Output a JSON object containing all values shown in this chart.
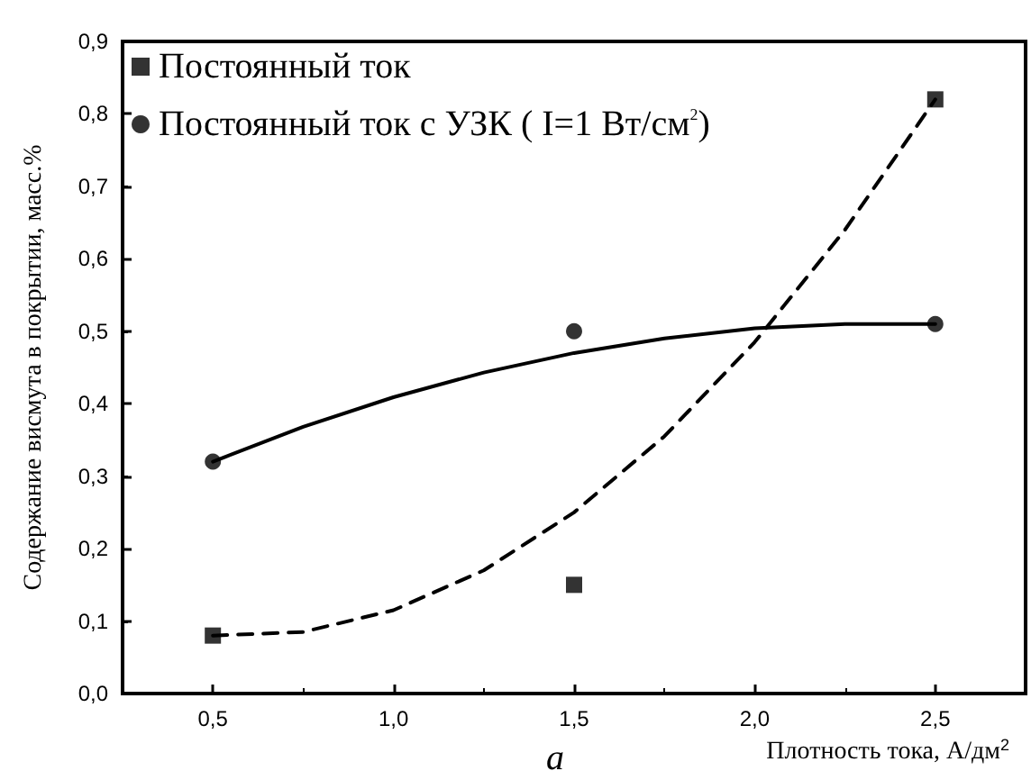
{
  "chart_data": {
    "type": "scatter",
    "xlabel": "Плотность тока, А/дм$^{2}$",
    "ylabel": "Содержание висмута в покрытии, масс.%",
    "annotations": [
      "a"
    ],
    "x": [
      0.5,
      1.5,
      2.5
    ],
    "series": [
      {
        "name": "Постоянный ток",
        "marker": "square",
        "color": "#000000",
        "values": [
          0.08,
          0.15,
          0.82
        ]
      },
      {
        "name": "Постоянный ток с УЗК ( I=1 Вт/см$^{2}$)",
        "marker": "circle",
        "color": "#000000",
        "values": [
          0.32,
          0.5,
          0.51
        ]
      },
      {
        "type": "line",
        "line_style": "dashed",
        "marker": "none",
        "color": "#000000",
        "x": [
          0.5,
          0.75,
          1.0,
          1.25,
          1.5,
          1.75,
          2.0,
          2.25,
          2.5
        ],
        "values": [
          0.08,
          0.085,
          0.115,
          0.17,
          0.25,
          0.355,
          0.485,
          0.64,
          0.82
        ]
      },
      {
        "type": "line",
        "line_style": "solid",
        "marker": "none",
        "color": "#000000",
        "x": [
          0.5,
          0.75,
          1.0,
          1.25,
          1.5,
          1.75,
          2.0,
          2.25,
          2.5
        ],
        "values": [
          0.32,
          0.368,
          0.409,
          0.443,
          0.47,
          0.49,
          0.504,
          0.51,
          0.51
        ]
      }
    ],
    "xlim": [
      0.25,
      2.75
    ],
    "xticks": [
      {
        "value": 0.5,
        "label": "0,5"
      },
      {
        "value": 1.0,
        "label": "1,0"
      },
      {
        "value": 1.5,
        "label": "1,5"
      },
      {
        "value": 2.0,
        "label": "2,0"
      },
      {
        "value": 2.5,
        "label": "2,5"
      }
    ],
    "ylim": [
      0,
      0.9
    ],
    "yticks": [
      {
        "value": 0,
        "label": "0,0"
      },
      {
        "value": 0.1,
        "label": "0,1"
      },
      {
        "value": 0.2,
        "label": "0,2"
      },
      {
        "value": 0.3,
        "label": "0,3"
      },
      {
        "value": 0.4,
        "label": "0,4"
      },
      {
        "value": 0.5,
        "label": "0,5"
      },
      {
        "value": 0.6,
        "label": "0,6"
      },
      {
        "value": 0.7,
        "label": "0,7"
      },
      {
        "value": 0.8,
        "label": "0,8"
      },
      {
        "value": 0.9,
        "label": "0,9"
      }
    ],
    "grid": false,
    "legend": "top left"
  }
}
